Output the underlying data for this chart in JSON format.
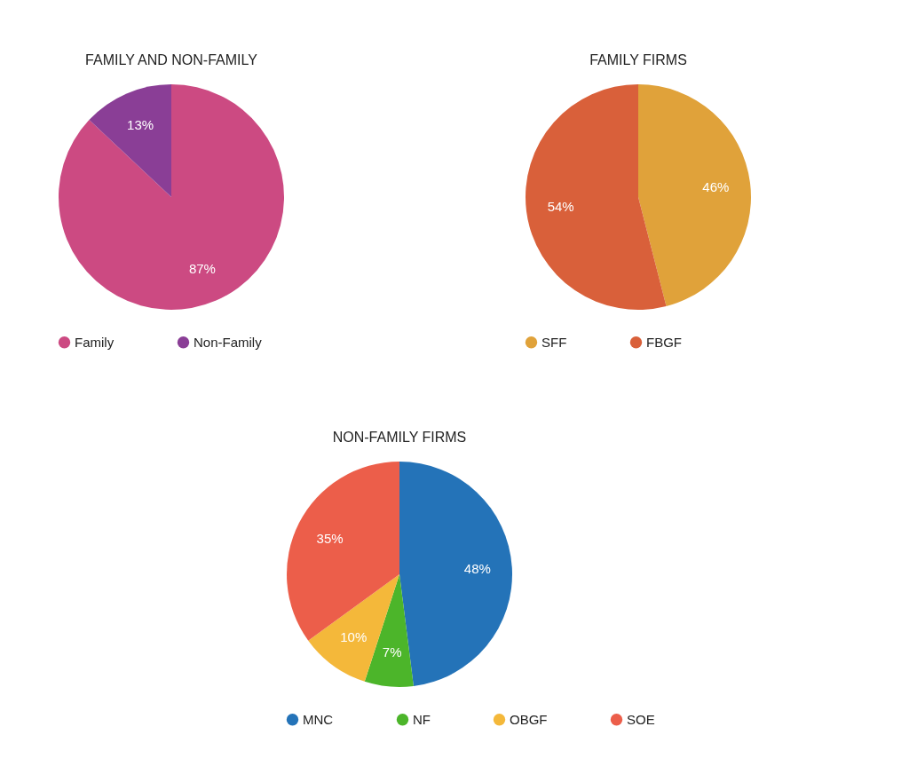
{
  "chart_data": [
    {
      "type": "pie",
      "title": "FAMILY AND NON-FAMILY",
      "categories": [
        "Family",
        "Non-Family"
      ],
      "values": [
        87,
        13
      ],
      "value_labels": [
        "87%",
        "13%"
      ],
      "colors": [
        "#cc4a82",
        "#8a3e96"
      ],
      "legend": "bottom"
    },
    {
      "type": "pie",
      "title": "FAMILY FIRMS",
      "categories": [
        "SFF",
        "FBGF"
      ],
      "values": [
        46,
        54
      ],
      "value_labels": [
        "46%",
        "54%"
      ],
      "colors": [
        "#e0a23a",
        "#d9603a"
      ],
      "legend": "bottom"
    },
    {
      "type": "pie",
      "title": "NON-FAMILY FIRMS",
      "categories": [
        "MNC",
        "NF",
        "OBGF",
        "SOE"
      ],
      "values": [
        48,
        7,
        10,
        35
      ],
      "value_labels": [
        "48%",
        "7%",
        "10%",
        "35%"
      ],
      "colors": [
        "#2473b8",
        "#4cb52a",
        "#f4b83a",
        "#ec5e4a"
      ],
      "legend": "bottom"
    }
  ]
}
